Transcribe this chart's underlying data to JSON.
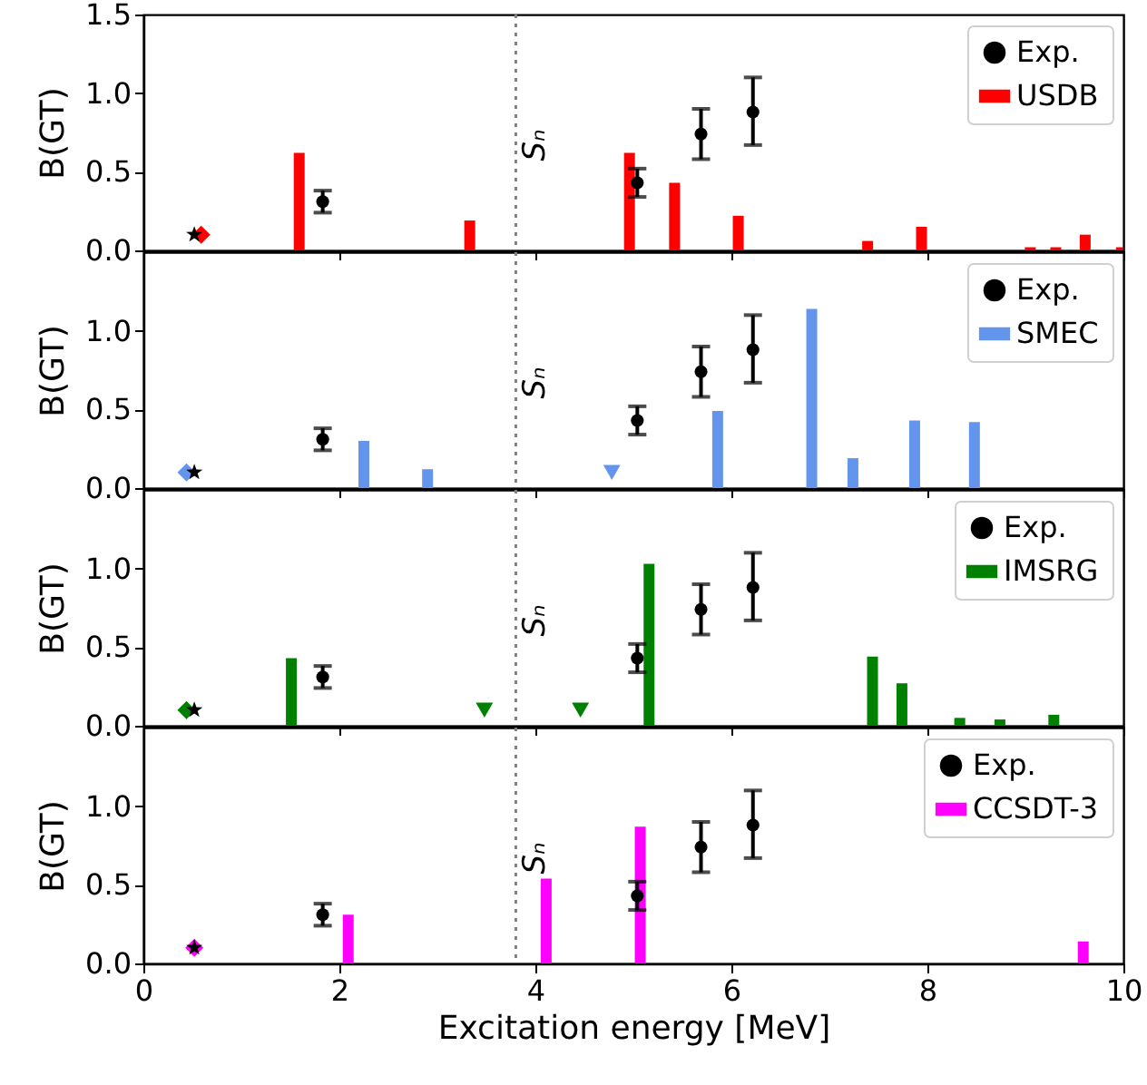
{
  "chart_data": [
    {
      "type": "bar",
      "ylabel": "B(GT)",
      "xlim": [
        0,
        10
      ],
      "xticks": [
        0,
        2,
        4,
        6,
        8,
        10
      ],
      "ylim": [
        0,
        1.5
      ],
      "yticks": [
        {
          "value": 0,
          "label": "0.0"
        },
        {
          "value": 0.5,
          "label": "0.5"
        },
        {
          "value": 1,
          "label": "1.0"
        },
        {
          "value": 1.5,
          "label": "1.5"
        }
      ],
      "tick_labels": "y",
      "grid": false,
      "legend": "top right",
      "ref_lines": [
        {
          "axis": "x",
          "value": 3.8,
          "label": "Sₙ",
          "color": "#808080",
          "line_style": "dotted"
        }
      ],
      "series": [
        {
          "name": "Exp.",
          "type": "scatter",
          "marker": "circle",
          "color": "#000000",
          "x": [
            1.83,
            5.04,
            5.69,
            6.22
          ],
          "values": [
            0.31,
            0.43,
            0.74,
            0.88
          ],
          "errors": [
            [
              0.24,
              0.38
            ],
            [
              0.34,
              0.52
            ],
            [
              0.58,
              0.9
            ],
            [
              0.67,
              1.1
            ]
          ]
        },
        {
          "name": "USDB",
          "type": "bar",
          "color": "#ff0000",
          "x": [
            1.59,
            3.33,
            4.96,
            5.42,
            6.07,
            7.39,
            7.94,
            9.05,
            9.31,
            9.61,
            9.98
          ],
          "values": [
            0.62,
            0.19,
            0.62,
            0.43,
            0.22,
            0.06,
            0.15,
            0.02,
            0.02,
            0.1,
            0.02
          ]
        },
        {
          "type": "scatter",
          "marker": "diamond",
          "color": "#ff0000",
          "x": [
            0.59
          ],
          "values": [
            0.1
          ]
        },
        {
          "type": "scatter",
          "marker": "star",
          "color": "#000000",
          "x": [
            0.52
          ],
          "values": [
            0.1
          ]
        }
      ]
    },
    {
      "type": "bar",
      "ylabel": "B(GT)",
      "xlim": [
        0,
        10
      ],
      "xticks": [
        0,
        2,
        4,
        6,
        8,
        10
      ],
      "ylim": [
        0,
        1.5
      ],
      "yticks": [
        {
          "value": 0,
          "label": "0.0"
        },
        {
          "value": 0.5,
          "label": "0.5"
        },
        {
          "value": 1,
          "label": "1.0"
        }
      ],
      "tick_labels": "y",
      "grid": false,
      "legend": "top right",
      "ref_lines": [
        {
          "axis": "x",
          "value": 3.8,
          "label": "Sₙ",
          "color": "#808080",
          "line_style": "dotted"
        }
      ],
      "series": [
        {
          "name": "Exp.",
          "type": "scatter",
          "marker": "circle",
          "color": "#000000",
          "x": [
            1.83,
            5.04,
            5.69,
            6.22
          ],
          "values": [
            0.31,
            0.43,
            0.74,
            0.88
          ],
          "errors": [
            [
              0.24,
              0.38
            ],
            [
              0.34,
              0.52
            ],
            [
              0.58,
              0.9
            ],
            [
              0.67,
              1.1
            ]
          ]
        },
        {
          "name": "SMEC",
          "type": "bar",
          "color": "#6495ed",
          "x": [
            2.25,
            2.9,
            5.86,
            6.82,
            7.24,
            7.87,
            8.48
          ],
          "values": [
            0.3,
            0.12,
            0.49,
            1.14,
            0.19,
            0.43,
            0.42
          ]
        },
        {
          "type": "scatter",
          "marker": "diamond",
          "color": "#6495ed",
          "x": [
            0.44
          ],
          "values": [
            0.1
          ]
        },
        {
          "type": "scatter",
          "marker": "star",
          "color": "#000000",
          "x": [
            0.52
          ],
          "values": [
            0.1
          ]
        },
        {
          "type": "scatter",
          "marker": "triangle",
          "color": "#6495ed",
          "x": [
            4.78
          ],
          "values": [
            0.1
          ]
        }
      ]
    },
    {
      "type": "bar",
      "ylabel": "B(GT)",
      "xlim": [
        0,
        10
      ],
      "xticks": [
        0,
        2,
        4,
        6,
        8,
        10
      ],
      "ylim": [
        0,
        1.5
      ],
      "yticks": [
        {
          "value": 0,
          "label": "0.0"
        },
        {
          "value": 0.5,
          "label": "0.5"
        },
        {
          "value": 1,
          "label": "1.0"
        }
      ],
      "tick_labels": "y",
      "grid": false,
      "legend": "top right",
      "ref_lines": [
        {
          "axis": "x",
          "value": 3.8,
          "label": "Sₙ",
          "color": "#808080",
          "line_style": "dotted"
        }
      ],
      "series": [
        {
          "name": "Exp.",
          "type": "scatter",
          "marker": "circle",
          "color": "#000000",
          "x": [
            1.83,
            5.04,
            5.69,
            6.22
          ],
          "values": [
            0.31,
            0.43,
            0.74,
            0.88
          ],
          "errors": [
            [
              0.24,
              0.38
            ],
            [
              0.34,
              0.52
            ],
            [
              0.58,
              0.9
            ],
            [
              0.67,
              1.1
            ]
          ]
        },
        {
          "name": "IMSRG",
          "type": "bar",
          "color": "#008000",
          "x": [
            1.51,
            5.16,
            7.44,
            7.74,
            8.33,
            8.74,
            9.29
          ],
          "values": [
            0.43,
            1.03,
            0.44,
            0.27,
            0.05,
            0.04,
            0.07
          ]
        },
        {
          "type": "scatter",
          "marker": "diamond",
          "color": "#008000",
          "x": [
            0.44
          ],
          "values": [
            0.1
          ]
        },
        {
          "type": "scatter",
          "marker": "star",
          "color": "#000000",
          "x": [
            0.52
          ],
          "values": [
            0.1
          ]
        },
        {
          "type": "scatter",
          "marker": "triangle",
          "color": "#008000",
          "x": [
            3.48,
            4.46
          ],
          "values": [
            0.1,
            0.1
          ]
        }
      ]
    },
    {
      "type": "bar",
      "xlabel": "Excitation energy [MeV]",
      "ylabel": "B(GT)",
      "xlim": [
        0,
        10
      ],
      "xticks": [
        0,
        2,
        4,
        6,
        8,
        10
      ],
      "ylim": [
        0,
        1.5
      ],
      "yticks": [
        {
          "value": 0,
          "label": "0.0"
        },
        {
          "value": 0.5,
          "label": "0.5"
        },
        {
          "value": 1,
          "label": "1.0"
        }
      ],
      "grid": false,
      "legend": "top right",
      "ref_lines": [
        {
          "axis": "x",
          "value": 3.8,
          "label": "Sₙ",
          "color": "#808080",
          "line_style": "dotted"
        }
      ],
      "series": [
        {
          "name": "Exp.",
          "type": "scatter",
          "marker": "circle",
          "color": "#000000",
          "x": [
            1.83,
            5.04,
            5.69,
            6.22
          ],
          "values": [
            0.31,
            0.43,
            0.74,
            0.88
          ],
          "errors": [
            [
              0.24,
              0.38
            ],
            [
              0.34,
              0.52
            ],
            [
              0.58,
              0.9
            ],
            [
              0.67,
              1.1
            ]
          ]
        },
        {
          "name": "CCSDT-3",
          "type": "bar",
          "color": "#ff00ff",
          "x": [
            2.09,
            4.11,
            5.07,
            9.59
          ],
          "values": [
            0.31,
            0.54,
            0.87,
            0.14
          ]
        },
        {
          "type": "scatter",
          "marker": "diamond",
          "color": "#ff00ff",
          "x": [
            0.52
          ],
          "values": [
            0.1
          ]
        },
        {
          "type": "scatter",
          "marker": "star",
          "color": "#000000",
          "x": [
            0.52
          ],
          "values": [
            0.1
          ]
        }
      ]
    }
  ]
}
